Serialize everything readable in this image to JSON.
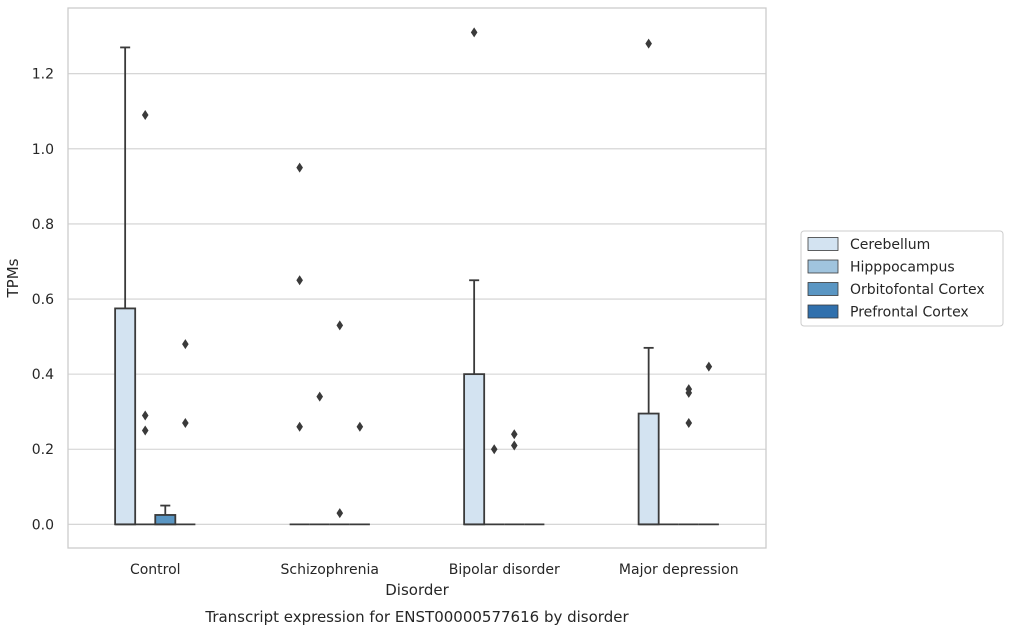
{
  "chart_data": {
    "type": "boxplot",
    "title": "Transcript expression for ENST00000577616 by disorder",
    "xlabel": "Disorder",
    "ylabel": "TPMs",
    "ylim": [
      -0.063,
      1.375
    ],
    "yticks": [
      "0.0",
      "0.2",
      "0.4",
      "0.6",
      "0.8",
      "1.0",
      "1.2"
    ],
    "grid": true,
    "legend_position": "right",
    "categories": [
      "Control",
      "Schizophrenia",
      "Bipolar disorder",
      "Major depression"
    ],
    "series": [
      {
        "name": "Cerebellum",
        "color": "#d3e3f1",
        "boxes": [
          {
            "min": 0,
            "q1": 0,
            "median": 0,
            "q3": 0.575,
            "max": 1.27,
            "outliers": []
          },
          {
            "min": 0,
            "q1": 0,
            "median": 0,
            "q3": 0,
            "max": 0,
            "outliers": [
              0.95,
              0.65,
              0.26
            ]
          },
          {
            "min": 0,
            "q1": 0,
            "median": 0,
            "q3": 0.4,
            "max": 0.65,
            "outliers": [
              1.31
            ]
          },
          {
            "min": 0,
            "q1": 0,
            "median": 0,
            "q3": 0.295,
            "max": 0.47,
            "outliers": [
              1.28
            ]
          }
        ]
      },
      {
        "name": "Hipppocampus",
        "color": "#a0c4de",
        "boxes": [
          {
            "min": 0,
            "q1": 0,
            "median": 0,
            "q3": 0,
            "max": 0,
            "outliers": [
              1.09,
              0.29,
              0.25
            ]
          },
          {
            "min": 0,
            "q1": 0,
            "median": 0,
            "q3": 0,
            "max": 0,
            "outliers": [
              0.34
            ]
          },
          {
            "min": 0,
            "q1": 0,
            "median": 0,
            "q3": 0,
            "max": 0,
            "outliers": [
              0.2
            ]
          },
          {
            "min": 0,
            "q1": 0,
            "median": 0,
            "q3": 0,
            "max": 0,
            "outliers": []
          }
        ]
      },
      {
        "name": "Orbitofontal Cortex",
        "color": "#5a96c3",
        "boxes": [
          {
            "min": 0,
            "q1": 0,
            "median": 0,
            "q3": 0.025,
            "max": 0.05,
            "outliers": []
          },
          {
            "min": 0,
            "q1": 0,
            "median": 0,
            "q3": 0,
            "max": 0,
            "outliers": [
              0.53,
              0.03
            ]
          },
          {
            "min": 0,
            "q1": 0,
            "median": 0,
            "q3": 0,
            "max": 0,
            "outliers": [
              0.24,
              0.21
            ]
          },
          {
            "min": 0,
            "q1": 0,
            "median": 0,
            "q3": 0,
            "max": 0,
            "outliers": [
              0.36,
              0.35,
              0.27
            ]
          }
        ]
      },
      {
        "name": "Prefrontal Cortex",
        "color": "#3070ad",
        "boxes": [
          {
            "min": 0,
            "q1": 0,
            "median": 0,
            "q3": 0,
            "max": 0,
            "outliers": [
              0.48,
              0.27
            ]
          },
          {
            "min": 0,
            "q1": 0,
            "median": 0,
            "q3": 0,
            "max": 0,
            "outliers": [
              0.26
            ]
          },
          {
            "min": 0,
            "q1": 0,
            "median": 0,
            "q3": 0,
            "max": 0,
            "outliers": []
          },
          {
            "min": 0,
            "q1": 0,
            "median": 0,
            "q3": 0,
            "max": 0,
            "outliers": [
              0.42
            ]
          }
        ]
      }
    ]
  }
}
